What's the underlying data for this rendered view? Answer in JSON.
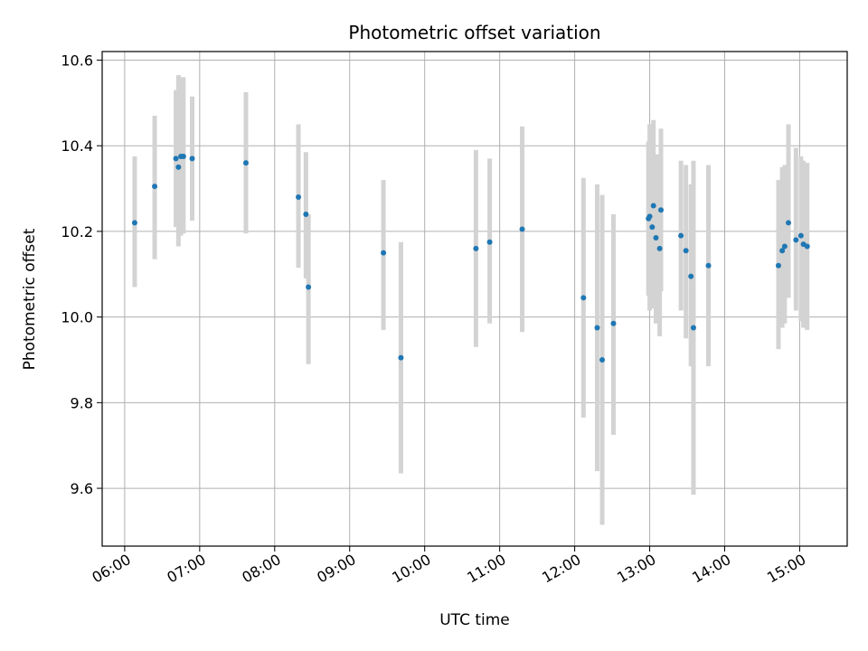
{
  "chart_data": {
    "type": "scatter",
    "title": "Photometric offset variation",
    "xlabel": "UTC time",
    "ylabel": "Photometric offset",
    "grid": true,
    "x_ticks": [
      "06:00",
      "07:00",
      "08:00",
      "09:00",
      "10:00",
      "11:00",
      "12:00",
      "13:00",
      "14:00",
      "15:00"
    ],
    "y_ticks": [
      "9.6",
      "9.8",
      "10.0",
      "10.2",
      "10.4",
      "10.6"
    ],
    "xlim": [
      "05:42",
      "15:38"
    ],
    "ylim": [
      9.465,
      10.62
    ],
    "colors": {
      "point": "#1f77b4",
      "errorbar": "#d3d3d3",
      "grid": "#b0b0b0"
    },
    "series": [
      {
        "x": [
          "06:08",
          "06:24",
          "06:41",
          "06:43",
          "06:45",
          "06:47",
          "06:54",
          "07:37",
          "08:19",
          "08:25",
          "08:27",
          "09:27",
          "09:41",
          "10:41",
          "10:52",
          "11:18",
          "12:07",
          "12:18",
          "12:22",
          "12:31",
          "12:59",
          "13:00",
          "13:02",
          "13:03",
          "13:05",
          "13:08",
          "13:09",
          "13:25",
          "13:29",
          "13:33",
          "13:35",
          "13:47",
          "14:43",
          "14:46",
          "14:48",
          "14:51",
          "14:57",
          "15:01",
          "15:03",
          "15:06"
        ],
        "y": [
          10.22,
          10.305,
          10.37,
          10.35,
          10.375,
          10.375,
          10.37,
          10.36,
          10.28,
          10.24,
          10.07,
          10.15,
          9.905,
          10.16,
          10.175,
          10.205,
          10.045,
          9.975,
          9.9,
          9.985,
          10.23,
          10.235,
          10.21,
          10.26,
          10.185,
          10.16,
          10.25,
          10.19,
          10.155,
          10.095,
          9.975,
          10.12,
          10.12,
          10.155,
          10.165,
          10.22,
          10.18,
          10.19,
          10.17,
          10.165
        ],
        "y_low": [
          10.07,
          10.135,
          10.21,
          10.165,
          10.19,
          10.195,
          10.225,
          10.195,
          10.115,
          10.09,
          9.89,
          9.97,
          9.635,
          9.93,
          9.985,
          9.965,
          9.765,
          9.64,
          9.515,
          9.725,
          10.05,
          10.015,
          10.02,
          10.05,
          9.985,
          9.955,
          10.06,
          10.015,
          9.95,
          9.885,
          9.585,
          9.885,
          9.925,
          9.975,
          9.985,
          10.045,
          10.015,
          9.99,
          9.975,
          9.97
        ],
        "y_high": [
          10.375,
          10.47,
          10.53,
          10.565,
          10.56,
          10.56,
          10.515,
          10.525,
          10.45,
          10.385,
          10.24,
          10.32,
          10.175,
          10.39,
          10.37,
          10.445,
          10.325,
          10.31,
          10.285,
          10.24,
          10.41,
          10.45,
          10.44,
          10.46,
          10.38,
          10.38,
          10.44,
          10.365,
          10.355,
          10.31,
          10.365,
          10.355,
          10.32,
          10.35,
          10.355,
          10.45,
          10.395,
          10.375,
          10.365,
          10.36
        ]
      }
    ]
  }
}
